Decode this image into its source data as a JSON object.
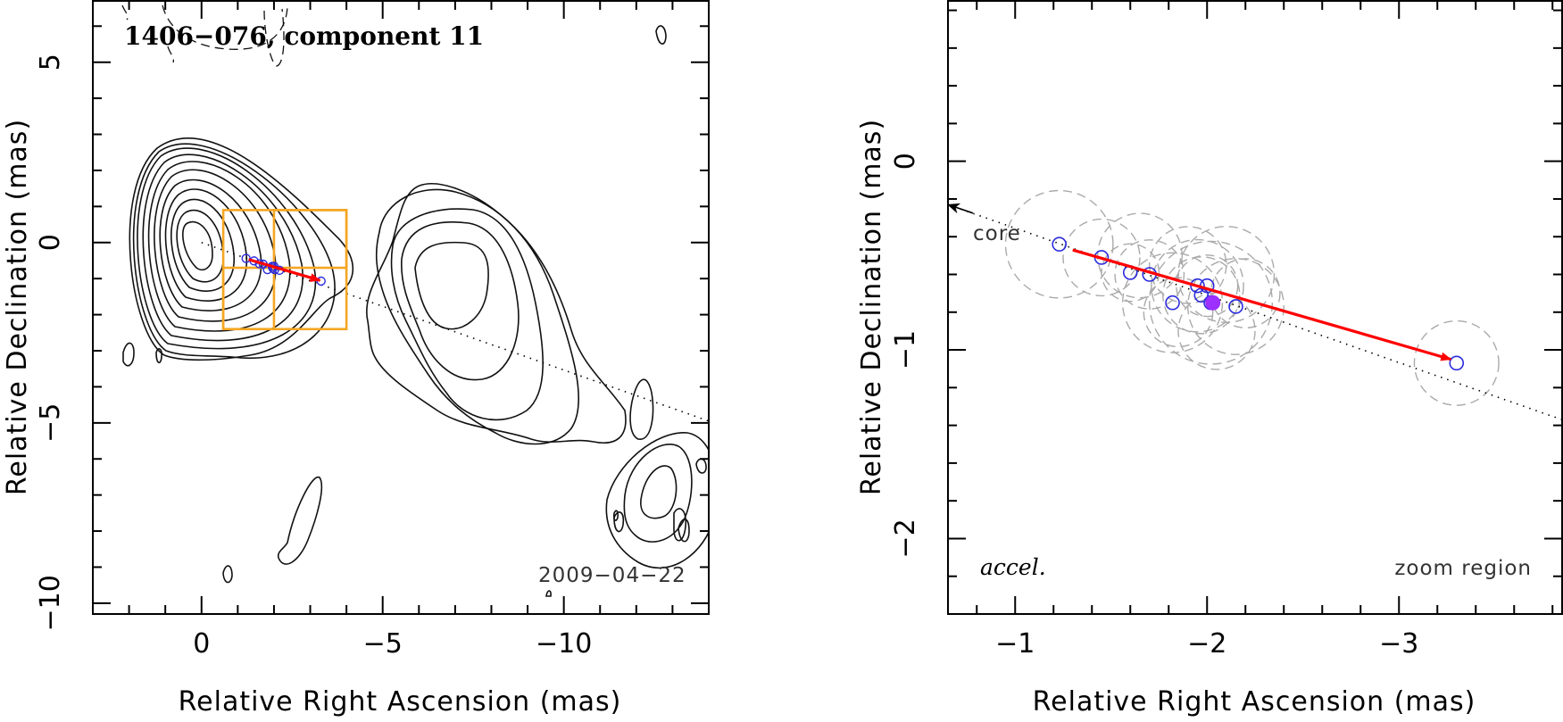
{
  "chart_data": [
    {
      "type": "scatter",
      "panel": "left",
      "title": "1406−076, component 11",
      "epoch_label": "2009−04−22",
      "xlabel": "Relative Right Ascension (mas)",
      "ylabel": "Relative Declination (mas)",
      "xlim": [
        3,
        -14
      ],
      "ylim": [
        -10.3,
        6.7
      ],
      "x_ticks": [
        0,
        -5,
        -10
      ],
      "x_tick_labels": [
        "0",
        "−5",
        "−10"
      ],
      "y_ticks": [
        5,
        0,
        -5,
        -10
      ],
      "y_tick_labels": [
        "5",
        "0",
        "−5",
        "−10"
      ],
      "contours": "radio map contours (black), negative contours dashed",
      "core_direction_line": {
        "x": [
          0,
          -14
        ],
        "y": [
          0,
          -4.95
        ],
        "style": "dotted"
      },
      "positions": {
        "x": [
          -1.23,
          -1.45,
          -1.6,
          -1.7,
          -1.82,
          -1.95,
          -1.97,
          -2.0,
          -2.02,
          -2.15,
          -3.3
        ],
        "y": [
          -0.44,
          -0.51,
          -0.59,
          -0.6,
          -0.75,
          -0.66,
          -0.71,
          -0.66,
          -0.75,
          -0.77,
          -1.07
        ]
      },
      "velocity_vector": {
        "x": [
          -1.3,
          -3.27
        ],
        "y": [
          -0.47,
          -1.05
        ],
        "color": "#ff0000"
      },
      "zoom_boxes": [
        {
          "x": [
            -0.6,
            -4
          ],
          "y": [
            0.9,
            -2.4
          ]
        },
        {
          "x": [
            -2,
            -4
          ],
          "y": [
            0.9,
            -0.7
          ]
        },
        {
          "x": [
            -0.6,
            -2
          ],
          "y": [
            -0.7,
            -2.4
          ]
        }
      ],
      "zoom_box_color": "#f5a623"
    },
    {
      "type": "scatter",
      "panel": "right",
      "annotation_left": "accel.",
      "annotation_right": "zoom region",
      "core_label": "core",
      "xlabel": "Relative Right Ascension (mas)",
      "ylabel": "Relative Declination (mas)",
      "xlim": [
        -0.65,
        -3.85
      ],
      "ylim": [
        -2.4,
        0.85
      ],
      "x_ticks": [
        -1,
        -2,
        -3
      ],
      "x_tick_labels": [
        "−1",
        "−2",
        "−3"
      ],
      "y_ticks": [
        0,
        -1,
        -2
      ],
      "y_tick_labels": [
        "0",
        "−1",
        "−2"
      ],
      "core_direction_line": {
        "x": [
          -0.65,
          -3.85
        ],
        "y": [
          -0.23,
          -1.37
        ],
        "style": "dotted"
      },
      "positions": {
        "x": [
          -1.23,
          -1.45,
          -1.6,
          -1.7,
          -1.82,
          -1.95,
          -1.97,
          -2.0,
          -2.02,
          -2.15,
          -3.3
        ],
        "y": [
          -0.44,
          -0.51,
          -0.59,
          -0.6,
          -0.75,
          -0.66,
          -0.71,
          -0.66,
          -0.75,
          -0.77,
          -1.07
        ]
      },
      "reference_epoch_point": {
        "x": -2.03,
        "y": -0.75,
        "color": "#9b30ff"
      },
      "velocity_vector": {
        "x": [
          -1.3,
          -3.27
        ],
        "y": [
          -0.47,
          -1.05
        ],
        "color": "#ff0000"
      },
      "marker_color": "#2b2bdd",
      "uncertainty_circle_color": "#aaaaaa"
    }
  ]
}
